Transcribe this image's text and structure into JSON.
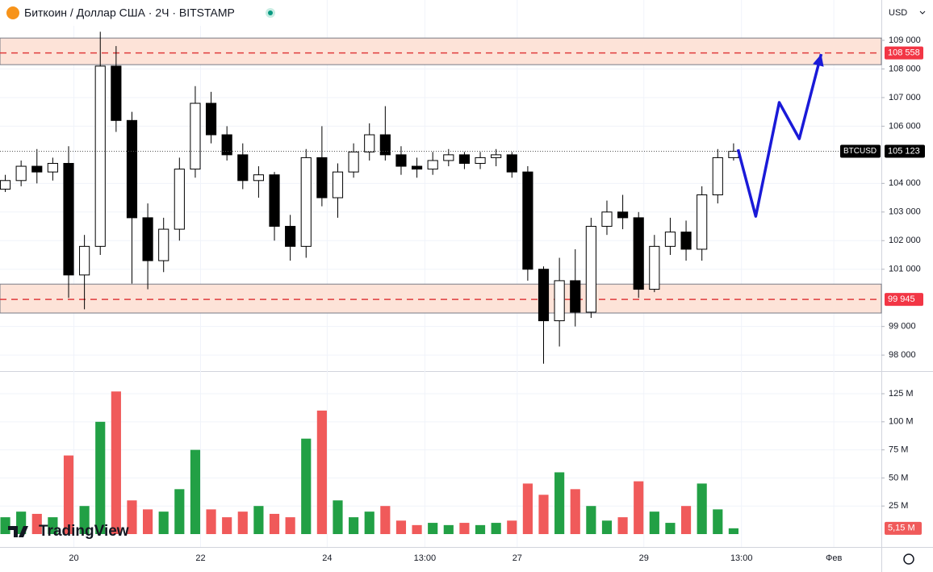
{
  "chart_data": {
    "type": "candlestick",
    "title": "Биткоин / Доллар США · 2Ч · BITSTAMP",
    "currency": "USD",
    "symbol": "BTCUSD",
    "watermark": "TradingView",
    "x": [
      -26,
      -20,
      -14,
      -8,
      -2,
      4,
      10,
      16,
      22,
      28,
      34,
      40,
      46,
      52,
      58,
      64,
      70,
      76,
      82,
      88,
      94,
      100,
      106,
      112,
      118,
      124,
      130,
      136,
      142,
      148,
      154,
      160,
      166,
      172,
      178,
      184,
      190,
      196,
      202,
      208,
      214,
      220,
      226,
      232,
      238,
      244,
      250
    ],
    "open": [
      103800,
      104100,
      104600,
      104400,
      104700,
      100800,
      101800,
      108100,
      106200,
      102800,
      101300,
      102400,
      104500,
      106800,
      105700,
      105000,
      104100,
      104300,
      102500,
      101800,
      104900,
      103500,
      104400,
      105100,
      105700,
      105000,
      104600,
      104500,
      104800,
      105000,
      104700,
      104900,
      105000,
      104400,
      101000,
      99200,
      100600,
      99500,
      102500,
      103000,
      102800,
      100300,
      101800,
      102300,
      101700,
      103600,
      104900
    ],
    "high": [
      104300,
      104800,
      105200,
      104900,
      105300,
      102200,
      109300,
      108800,
      106500,
      103300,
      102800,
      104900,
      107400,
      107200,
      106000,
      105400,
      104600,
      104400,
      102900,
      105200,
      106000,
      104700,
      105400,
      106100,
      106700,
      105300,
      104900,
      105100,
      105200,
      105100,
      105100,
      105200,
      105100,
      104600,
      101100,
      101400,
      101700,
      102800,
      103400,
      103600,
      103000,
      102200,
      102800,
      102700,
      103900,
      105200,
      105400
    ],
    "low": [
      103700,
      103900,
      104000,
      104100,
      100000,
      99600,
      101500,
      105800,
      100500,
      100300,
      100900,
      102000,
      104200,
      105400,
      104800,
      103800,
      103500,
      102000,
      101300,
      101400,
      103200,
      102800,
      104200,
      104800,
      104800,
      104300,
      104200,
      104300,
      104600,
      104500,
      104500,
      104600,
      104200,
      100600,
      97700,
      98300,
      99000,
      99300,
      102200,
      102400,
      100000,
      100200,
      101500,
      101300,
      101300,
      103300,
      104800
    ],
    "close": [
      104100,
      104600,
      104400,
      104700,
      100800,
      101800,
      108100,
      106200,
      102800,
      101300,
      102400,
      104500,
      106800,
      105700,
      105000,
      104100,
      104300,
      102500,
      101800,
      104900,
      103500,
      104400,
      105100,
      105700,
      105000,
      104600,
      104500,
      104800,
      105000,
      104700,
      104900,
      105000,
      104400,
      101000,
      99200,
      100600,
      99500,
      102500,
      103000,
      102800,
      100300,
      101800,
      102300,
      101700,
      103600,
      104900,
      105123
    ],
    "xlim": [
      -28,
      306
    ],
    "xticks": [
      {
        "value": 0,
        "label": "20"
      },
      {
        "value": 48,
        "label": "22"
      },
      {
        "value": 96,
        "label": "24"
      },
      {
        "value": 133,
        "label": "13:00"
      },
      {
        "value": 168,
        "label": "27"
      },
      {
        "value": 216,
        "label": "29"
      },
      {
        "value": 253,
        "label": "13:00"
      },
      {
        "value": 288,
        "label": "Фев"
      }
    ],
    "ylim": [
      97440,
      110410
    ],
    "yticks": [
      {
        "value": 98000,
        "label": "98 000"
      },
      {
        "value": 99000,
        "label": "99 000"
      },
      {
        "value": 101000,
        "label": "101 000"
      },
      {
        "value": 102000,
        "label": "102 000"
      },
      {
        "value": 103000,
        "label": "103 000"
      },
      {
        "value": 104000,
        "label": "104 000"
      },
      {
        "value": 106000,
        "label": "106 000"
      },
      {
        "value": 107000,
        "label": "107 000"
      },
      {
        "value": 108000,
        "label": "108 000"
      },
      {
        "value": 109000,
        "label": "109 000"
      }
    ],
    "last_price_label": {
      "value": 105123,
      "label": "105 123"
    },
    "levels": [
      {
        "value": 108558,
        "label": "108 558",
        "zone": [
          108150,
          109080
        ]
      },
      {
        "value": 99945,
        "label": "99 945",
        "zone": [
          99470,
          100480
        ]
      }
    ],
    "projection": {
      "x": [
        251.7,
        258.4,
        267.3,
        274.9,
        283.2
      ],
      "y": [
        105190,
        102850,
        106830,
        105560,
        108520
      ],
      "color": "#1a1ad8"
    },
    "volume": {
      "values": [
        15,
        20,
        18,
        15,
        70,
        25,
        100,
        127,
        30,
        22,
        20,
        40,
        75,
        22,
        15,
        20,
        25,
        18,
        15,
        85,
        110,
        30,
        15,
        20,
        25,
        12,
        8,
        10,
        8,
        10,
        8,
        10,
        12,
        45,
        35,
        55,
        40,
        25,
        12,
        15,
        47,
        20,
        10,
        25,
        45,
        22,
        5.15
      ],
      "ylim": [
        -11.5,
        143.7
      ],
      "yticks": [
        {
          "value": 25,
          "label": "25 M"
        },
        {
          "value": 50,
          "label": "50 M"
        },
        {
          "value": 75,
          "label": "75 M"
        },
        {
          "value": 100,
          "label": "100 M"
        },
        {
          "value": 125,
          "label": "125 M"
        }
      ],
      "last_value_label": "5,15 M",
      "up_color": "#22a045",
      "down_color": "#f05a5a"
    }
  }
}
